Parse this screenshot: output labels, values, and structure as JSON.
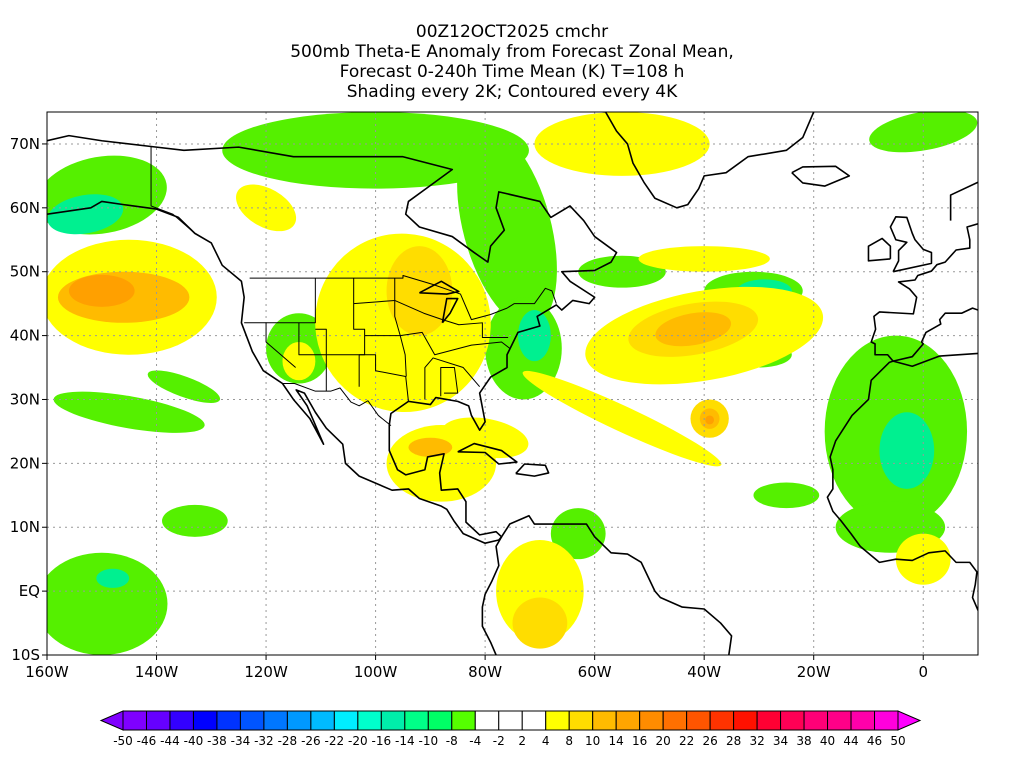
{
  "title": {
    "lines": [
      "00Z12OCT2025 cmchr",
      "500mb Theta-E Anomaly from Forecast Zonal Mean,",
      "Forecast 0-240h Time Mean (K) T=108 h",
      "Shading every 2K; Contoured every 4K"
    ]
  },
  "map": {
    "lon_range": [
      -160,
      10
    ],
    "lat_range": [
      -10,
      75
    ],
    "lat_ticks": [
      {
        "v": 70,
        "label": "70N"
      },
      {
        "v": 60,
        "label": "60N"
      },
      {
        "v": 50,
        "label": "50N"
      },
      {
        "v": 40,
        "label": "40N"
      },
      {
        "v": 30,
        "label": "30N"
      },
      {
        "v": 20,
        "label": "20N"
      },
      {
        "v": 10,
        "label": "10N"
      },
      {
        "v": 0,
        "label": "EQ"
      },
      {
        "v": -10,
        "label": "10S"
      }
    ],
    "lon_ticks": [
      {
        "v": -160,
        "label": "160W"
      },
      {
        "v": -140,
        "label": "140W"
      },
      {
        "v": -120,
        "label": "120W"
      },
      {
        "v": -100,
        "label": "100W"
      },
      {
        "v": -80,
        "label": "80W"
      },
      {
        "v": -60,
        "label": "60W"
      },
      {
        "v": -40,
        "label": "40W"
      },
      {
        "v": -20,
        "label": "20W"
      },
      {
        "v": 0,
        "label": "0"
      }
    ]
  },
  "colorbar": {
    "labels": [
      "-50",
      "-46",
      "-44",
      "-40",
      "-38",
      "-34",
      "-32",
      "-28",
      "-26",
      "-22",
      "-20",
      "-16",
      "-14",
      "-10",
      "-8",
      "-4",
      "-2",
      "2",
      "4",
      "8",
      "10",
      "14",
      "16",
      "20",
      "22",
      "26",
      "28",
      "32",
      "34",
      "38",
      "40",
      "44",
      "46",
      "50"
    ],
    "colors": [
      "#7f00ff",
      "#6600ff",
      "#3300ff",
      "#0000ff",
      "#0033ff",
      "#0055ff",
      "#0077ff",
      "#0099ff",
      "#00bbff",
      "#00eeff",
      "#00ffcc",
      "#00eeaa",
      "#00ff88",
      "#00ff66",
      "#55ff00",
      "#ffffff",
      "#ffffff",
      "#ffffff",
      "#ffff00",
      "#ffdd00",
      "#ffbb00",
      "#ffa500",
      "#ff8c00",
      "#ff7000",
      "#ff5500",
      "#ff3300",
      "#ff1100",
      "#ff0033",
      "#ff0055",
      "#ff0077",
      "#ff0088",
      "#ff00aa",
      "#ff00dd"
    ],
    "under_color": "#8000ff",
    "over_color": "#ff00ff"
  }
}
